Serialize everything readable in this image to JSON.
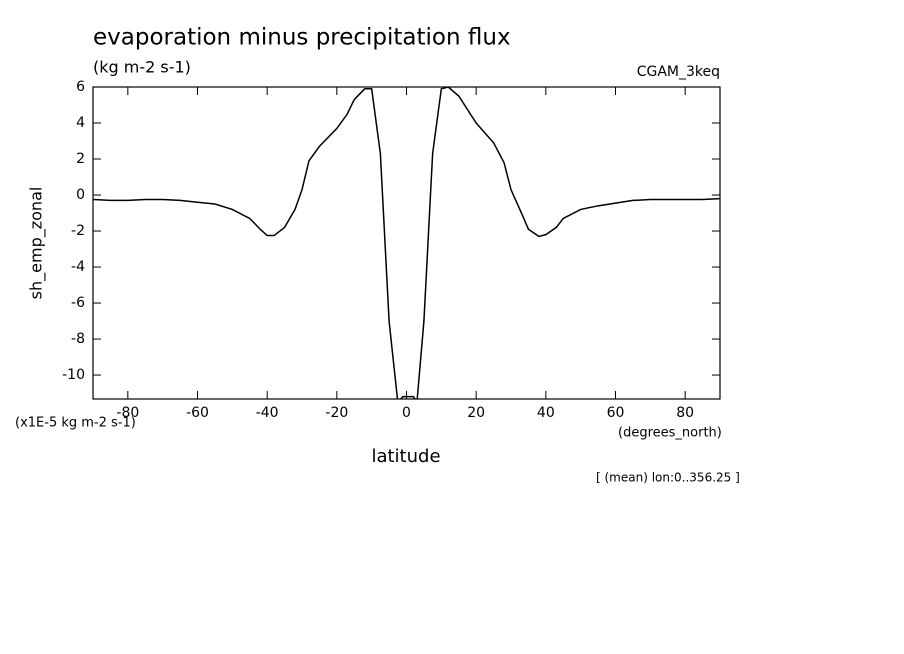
{
  "chart_data": {
    "type": "line",
    "title": "evaporation minus precipitation flux",
    "subtitle": "(kg m-2 s-1)",
    "dataset": "CGAM_3keq",
    "y_label": "sh_emp_zonal",
    "y_units": "(x1E-5 kg m-2 s-1)",
    "x_label": "latitude",
    "x_units": "(degrees_north)",
    "annotation": "[ (mean) lon:0..356.25 ]",
    "xlim": [
      -90,
      90
    ],
    "ylim": [
      -11.33,
      6
    ],
    "xticks": [
      -80,
      -60,
      -40,
      -20,
      0,
      20,
      40,
      60,
      80
    ],
    "yticks": [
      -10,
      -8,
      -6,
      -4,
      -2,
      0,
      2,
      4,
      6
    ],
    "x": [
      -90,
      -85,
      -80,
      -75,
      -70,
      -65,
      -60,
      -55,
      -50,
      -45,
      -42,
      -40,
      -38,
      -35,
      -32,
      -30,
      -28,
      -25,
      -20,
      -17,
      -15,
      -12,
      -10,
      -7.5,
      -5,
      -2.5,
      -1,
      2,
      3,
      5,
      7.5,
      10,
      12,
      15,
      20,
      25,
      28,
      30,
      33,
      35,
      38,
      40,
      43,
      45,
      50,
      55,
      60,
      65,
      70,
      75,
      80,
      85,
      90
    ],
    "series": [
      {
        "name": "sh_emp_zonal",
        "color": "#000000",
        "values": [
          -0.25,
          -0.3,
          -0.3,
          -0.25,
          -0.25,
          -0.3,
          -0.4,
          -0.5,
          -0.8,
          -1.3,
          -1.9,
          -2.25,
          -2.25,
          -1.8,
          -0.8,
          0.3,
          1.9,
          2.7,
          3.7,
          4.5,
          5.3,
          5.9,
          5.9,
          2.3,
          -7,
          -11.5,
          -11.2,
          -11.2,
          -11.5,
          -7,
          2.3,
          5.9,
          6.0,
          5.5,
          4.0,
          2.9,
          1.8,
          0.3,
          -1.0,
          -1.9,
          -2.3,
          -2.2,
          -1.8,
          -1.3,
          -0.8,
          -0.6,
          -0.45,
          -0.3,
          -0.25,
          -0.25,
          -0.25,
          -0.25,
          -0.2
        ]
      }
    ]
  }
}
